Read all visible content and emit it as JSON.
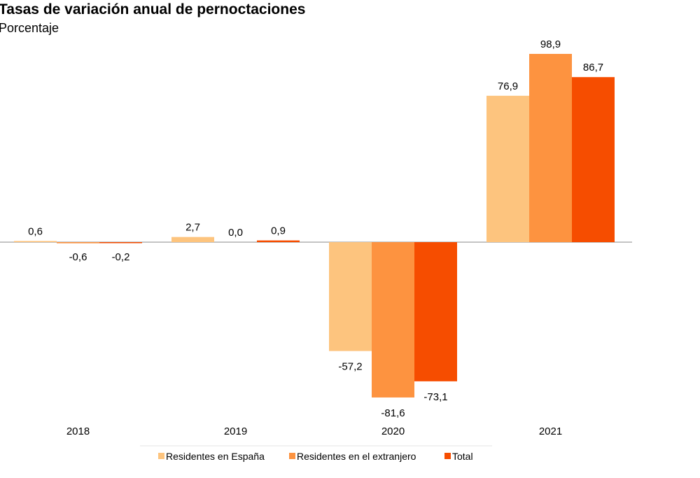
{
  "chart_data": {
    "type": "bar",
    "title": "Tasas de variación anual de pernoctaciones",
    "subtitle": "Porcentaje",
    "categories": [
      "2018",
      "2019",
      "2020",
      "2021"
    ],
    "series": [
      {
        "name": "Residentes en España",
        "color": "#FDC47E",
        "values": [
          0.6,
          2.7,
          -57.2,
          76.9
        ],
        "labels": [
          "0,6",
          "2,7",
          "-57,2",
          "76,9"
        ]
      },
      {
        "name": "Residentes en el extranjero",
        "color": "#FD9340",
        "values": [
          -0.6,
          0.0,
          -81.6,
          98.9
        ],
        "labels": [
          "-0,6",
          "0,0",
          "-81,6",
          "98,9"
        ]
      },
      {
        "name": "Total",
        "color": "#F64D00",
        "values": [
          -0.2,
          0.9,
          -73.1,
          86.7
        ],
        "labels": [
          "-0,2",
          "0,9",
          "-73,1",
          "86,7"
        ]
      }
    ],
    "xlabel": "",
    "ylabel": "",
    "ylim": [
      -85,
      100
    ],
    "grid": false,
    "legend_position": "bottom"
  }
}
